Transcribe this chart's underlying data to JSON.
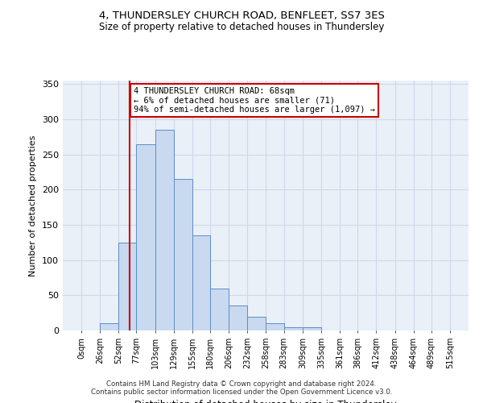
{
  "title": "4, THUNDERSLEY CHURCH ROAD, BENFLEET, SS7 3ES",
  "subtitle": "Size of property relative to detached houses in Thundersley",
  "xlabel": "Distribution of detached houses by size in Thundersley",
  "ylabel": "Number of detached properties",
  "bin_edges": [
    0,
    26,
    52,
    77,
    103,
    129,
    155,
    180,
    206,
    232,
    258,
    283,
    309,
    335,
    361,
    386,
    412,
    438,
    464,
    489,
    515
  ],
  "bar_heights": [
    0,
    10,
    125,
    265,
    285,
    215,
    135,
    60,
    35,
    20,
    10,
    5,
    5,
    0,
    0,
    0,
    0,
    0,
    0,
    0
  ],
  "bar_color": "#c9d9f0",
  "bar_edge_color": "#5b8ec4",
  "grid_color": "#d0d8e8",
  "property_size": 68,
  "red_line_color": "#cc0000",
  "annotation_text": "4 THUNDERSLEY CHURCH ROAD: 68sqm\n← 6% of detached houses are smaller (71)\n94% of semi-detached houses are larger (1,097) →",
  "annotation_box_color": "#ffffff",
  "annotation_box_edge": "#cc0000",
  "ylim": [
    0,
    355
  ],
  "yticks": [
    0,
    50,
    100,
    150,
    200,
    250,
    300,
    350
  ],
  "footer1": "Contains HM Land Registry data © Crown copyright and database right 2024.",
  "footer2": "Contains public sector information licensed under the Open Government Licence v3.0.",
  "bg_color": "#eaf0f8"
}
